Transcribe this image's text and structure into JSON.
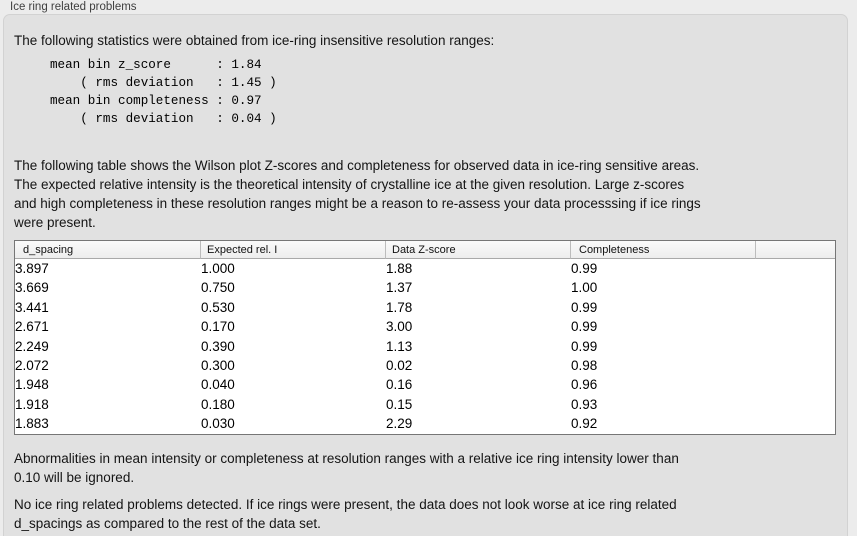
{
  "colors": {
    "window_bg": "#ececec",
    "panel_bg": "#e1e1e1",
    "panel_border": "#d2d2d2",
    "table_border": "#767676",
    "table_header_bg_top": "#fafafa",
    "table_header_bg_bottom": "#ededed",
    "header_separator": "#bcbcbc",
    "text": "#141414",
    "title_text": "#3f3f3f"
  },
  "section": {
    "title": "Ice ring related problems"
  },
  "content": {
    "intro": "The following statistics were obtained from ice-ring insensitive resolution ranges:",
    "stats_block": "mean bin z_score      : 1.84\n    ( rms deviation   : 1.45 )\nmean bin completeness : 0.97\n    ( rms deviation   : 0.04 )",
    "table_description": "The following table shows the Wilson plot Z-scores and completeness for observed data in ice-ring sensitive areas.\nThe expected relative intensity is the theoretical intensity of crystalline ice at the given resolution. Large z-scores\nand high completeness in these resolution ranges might be a reason to re-assess your data processsing if ice rings\nwere present.",
    "ignore_note": "Abnormalities in mean intensity or completeness at resolution ranges with a relative ice ring intensity lower than\n0.10 will be ignored.",
    "conclusion": "No ice ring related problems detected. If ice rings were present, the data does not look worse at ice ring related\nd_spacings as compared to the rest of the data set."
  },
  "table": {
    "columns": [
      "d_spacing",
      "Expected rel. I",
      "Data Z-score",
      "Completeness",
      ""
    ],
    "rows": [
      [
        "3.897",
        "1.000",
        "1.88",
        "0.99"
      ],
      [
        "3.669",
        "0.750",
        "1.37",
        "1.00"
      ],
      [
        "3.441",
        "0.530",
        "1.78",
        "0.99"
      ],
      [
        "2.671",
        "0.170",
        "3.00",
        "0.99"
      ],
      [
        "2.249",
        "0.390",
        "1.13",
        "0.99"
      ],
      [
        "2.072",
        "0.300",
        "0.02",
        "0.98"
      ],
      [
        "1.948",
        "0.040",
        "0.16",
        "0.96"
      ],
      [
        "1.918",
        "0.180",
        "0.15",
        "0.93"
      ],
      [
        "1.883",
        "0.030",
        "2.29",
        "0.92"
      ]
    ]
  }
}
